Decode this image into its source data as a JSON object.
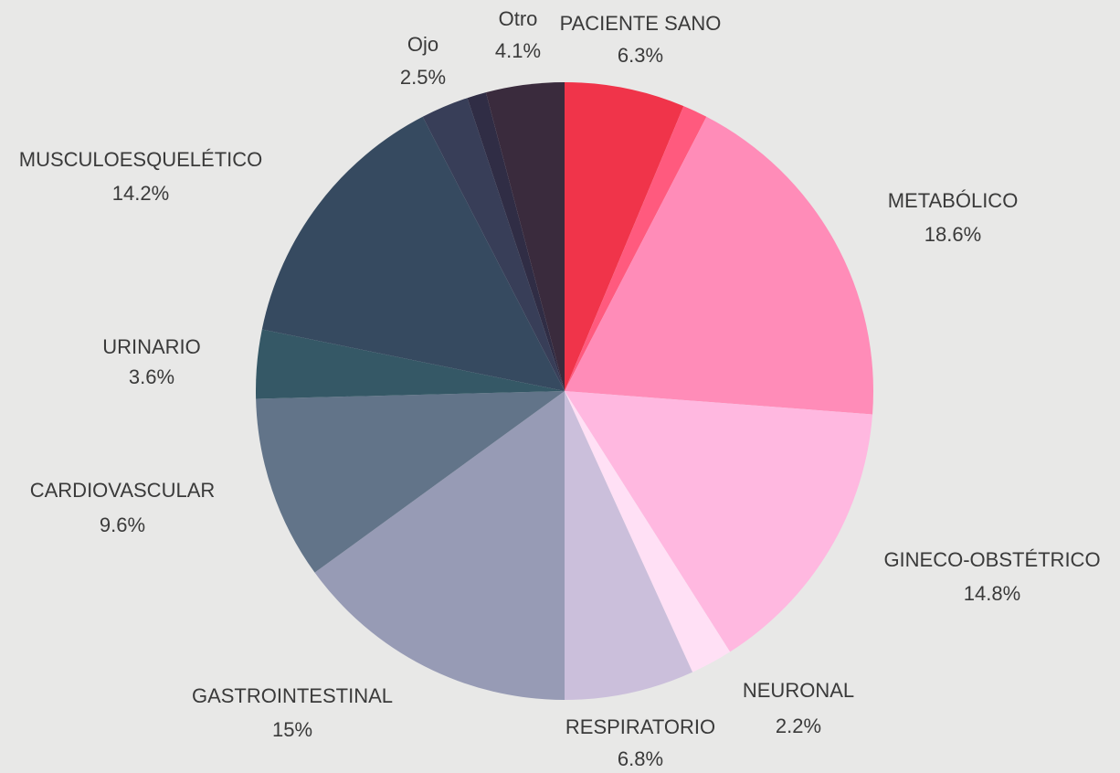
{
  "chart_data": {
    "type": "pie",
    "categories": [
      "PACIENTE SANO",
      null,
      "METABÓLICO",
      "GINECO-OBSTÉTRICO",
      "NEURONAL",
      "RESPIRATORIO",
      "GASTROINTESTINAL",
      "CARDIOVASCULAR",
      "URINARIO",
      "MUSCULOESQUELÉTICO",
      "Ojo",
      null,
      "Otro"
    ],
    "values": [
      6.3,
      1.3,
      18.6,
      14.8,
      2.2,
      6.8,
      15,
      9.6,
      3.6,
      14.2,
      2.5,
      1.0,
      4.1
    ],
    "value_labels": [
      "6.3%",
      null,
      "18.6%",
      "14.8%",
      "2.2%",
      "6.8%",
      "15%",
      "9.6%",
      "3.6%",
      "14.2%",
      "2.5%",
      null,
      "4.1%"
    ],
    "colors": [
      "#f0344a",
      "#ff5a7e",
      "#ff8cb8",
      "#ffb8e0",
      "#ffe0f5",
      "#cbbfdb",
      "#979bb5",
      "#627489",
      "#355866",
      "#364a60",
      "#383e58",
      "#302d45",
      "#3a2b3d"
    ]
  }
}
